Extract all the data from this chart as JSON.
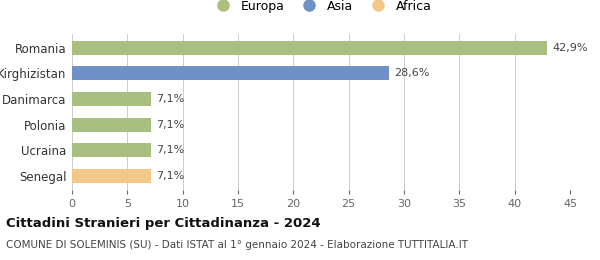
{
  "categories": [
    "Senegal",
    "Ucraina",
    "Polonia",
    "Danimarca",
    "Kirghizistan",
    "Romania"
  ],
  "values": [
    7.1,
    7.1,
    7.1,
    7.1,
    28.6,
    42.9
  ],
  "labels": [
    "7,1%",
    "7,1%",
    "7,1%",
    "7,1%",
    "28,6%",
    "42,9%"
  ],
  "colors": [
    "#f2c88a",
    "#a8bf80",
    "#a8bf80",
    "#a8bf80",
    "#7090c8",
    "#a8bf80"
  ],
  "legend_items": [
    {
      "label": "Europa",
      "color": "#a8bf80"
    },
    {
      "label": "Asia",
      "color": "#7090c8"
    },
    {
      "label": "Africa",
      "color": "#f2c88a"
    }
  ],
  "xlim": [
    0,
    45
  ],
  "xticks": [
    0,
    5,
    10,
    15,
    20,
    25,
    30,
    35,
    40,
    45
  ],
  "title_bold": "Cittadini Stranieri per Cittadinanza - 2024",
  "subtitle": "COMUNE DI SOLEMINIS (SU) - Dati ISTAT al 1° gennaio 2024 - Elaborazione TUTTITALIA.IT",
  "bg_color": "#ffffff",
  "bar_height": 0.55,
  "label_fontsize": 8.0,
  "grid_color": "#cccccc",
  "title_fontsize": 9.5,
  "subtitle_fontsize": 7.5
}
